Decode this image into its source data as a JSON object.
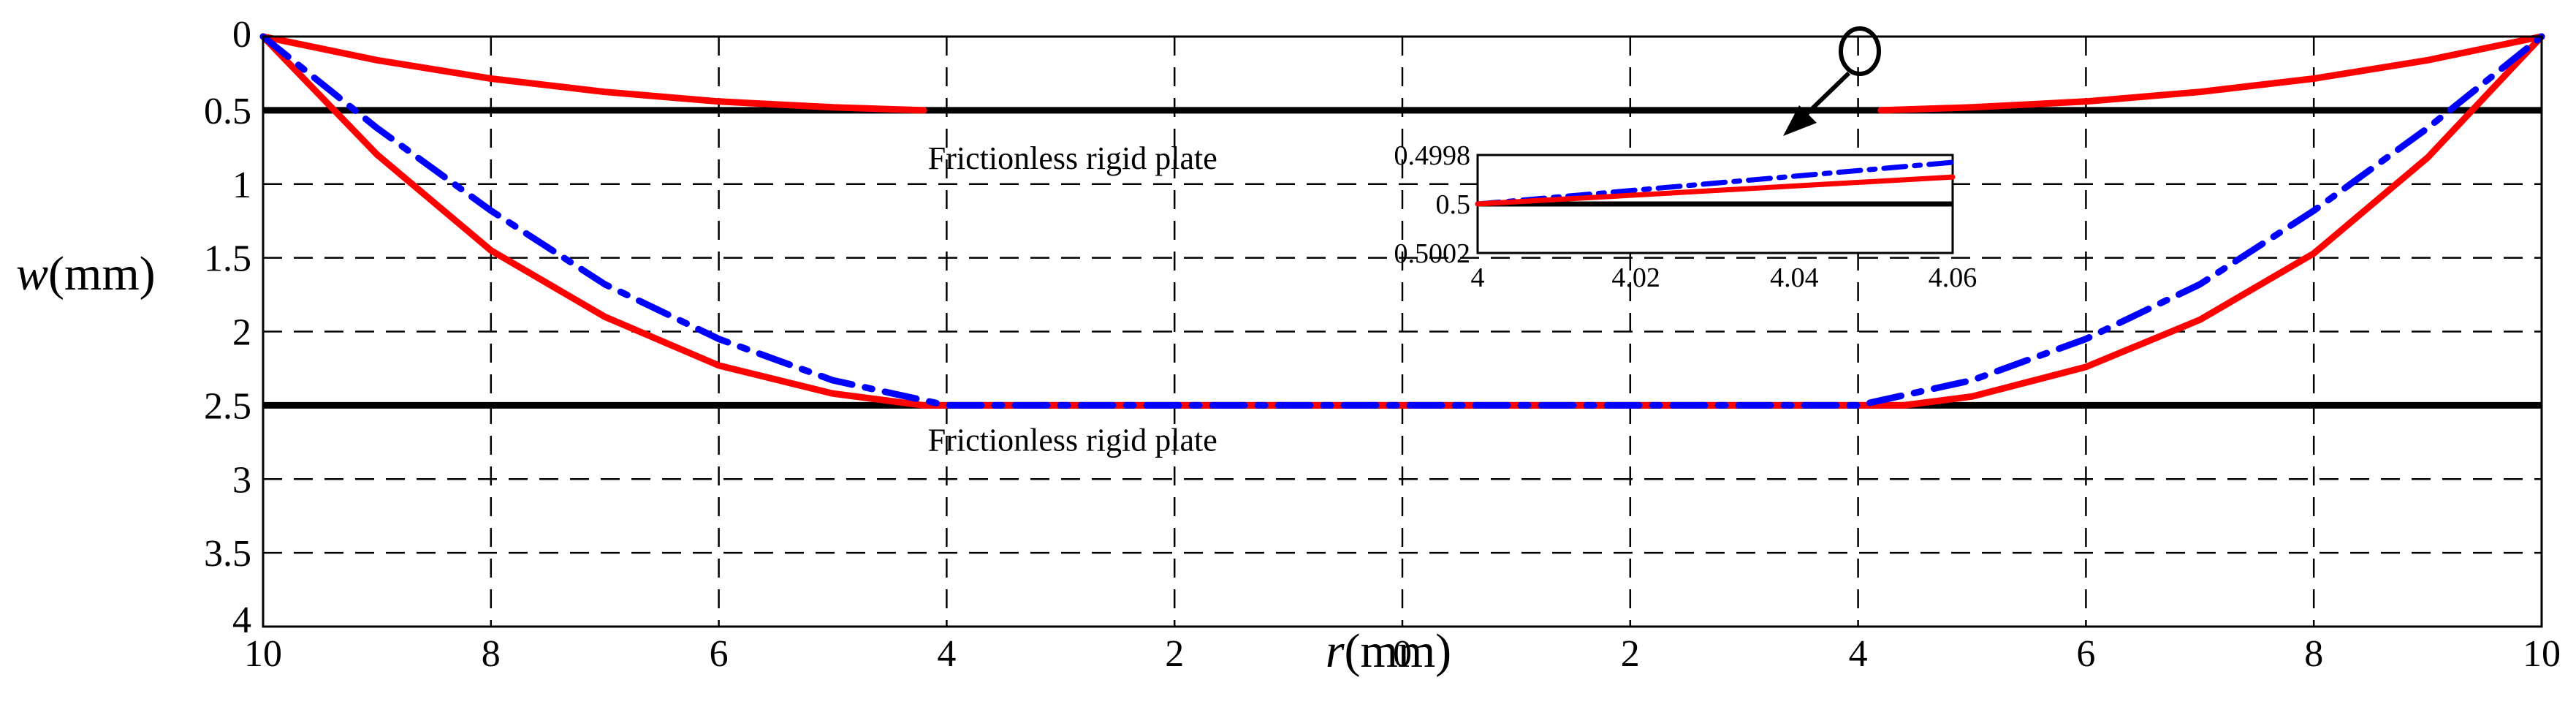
{
  "chart_data": {
    "type": "line",
    "title": "",
    "xlabel_italic": "r",
    "xlabel_unit": "(mm)",
    "ylabel_italic": "w",
    "ylabel_unit": "(mm)",
    "xlim": [
      -10,
      10
    ],
    "ylim": [
      0,
      4
    ],
    "y_inverted": true,
    "grid": true,
    "x_ticks": [
      -10,
      -8,
      -6,
      -4,
      -2,
      0,
      2,
      4,
      6,
      8,
      10
    ],
    "x_tick_labels": [
      "10",
      "8",
      "6",
      "4",
      "2",
      "0",
      "2",
      "4",
      "6",
      "8",
      "10"
    ],
    "y_ticks": [
      0,
      0.5,
      1,
      1.5,
      2,
      2.5,
      3,
      3.5,
      4
    ],
    "y_tick_labels": [
      "0",
      "0.5",
      "1",
      "1.5",
      "2",
      "2.5",
      "3",
      "3.5",
      "4"
    ],
    "plates": [
      {
        "name": "Frictionless rigid plate",
        "y": 0.5,
        "label": "Frictionless rigid plate",
        "label_x": -4.1
      },
      {
        "name": "Frictionless rigid plate",
        "y": 2.5,
        "label": "Frictionless rigid plate",
        "label_x": -4.1
      }
    ],
    "series": [
      {
        "name": "membrane-upper-left",
        "color": "#ff0000",
        "style": "solid",
        "x": [
          -10,
          -9,
          -8,
          -7,
          -6,
          -5,
          -4.2
        ],
        "y": [
          0,
          0.16,
          0.285,
          0.375,
          0.44,
          0.48,
          0.5
        ]
      },
      {
        "name": "membrane-upper-right",
        "color": "#ff0000",
        "style": "solid",
        "x": [
          4.2,
          5,
          6,
          7,
          8,
          9,
          10
        ],
        "y": [
          0.5,
          0.48,
          0.44,
          0.375,
          0.285,
          0.16,
          0
        ]
      },
      {
        "name": "membrane-lower-solid",
        "color": "#ff0000",
        "style": "solid",
        "x": [
          -10,
          -9,
          -8,
          -7,
          -6,
          -5,
          -4.2,
          4.4,
          5,
          6,
          7,
          8,
          9,
          10
        ],
        "y": [
          0,
          0.8,
          1.45,
          1.9,
          2.23,
          2.42,
          2.5,
          2.5,
          2.44,
          2.24,
          1.92,
          1.47,
          0.82,
          0
        ]
      },
      {
        "name": "membrane-lower-dashdot",
        "color": "#0000ff",
        "style": "dashdot",
        "x": [
          -10,
          -9,
          -8,
          -7,
          -6,
          -5,
          -4,
          4,
          5,
          6,
          7,
          8,
          9,
          10
        ],
        "y": [
          0,
          0.62,
          1.18,
          1.68,
          2.05,
          2.33,
          2.5,
          2.5,
          2.33,
          2.05,
          1.68,
          1.18,
          0.62,
          0
        ]
      }
    ],
    "annotation": {
      "type": "circle-arrow",
      "points_to": "inset"
    },
    "inset": {
      "xlim": [
        4,
        4.06
      ],
      "ylim": [
        0.4998,
        0.5002
      ],
      "y_inverted": true,
      "x_ticks": [
        4,
        4.02,
        4.04,
        4.06
      ],
      "x_tick_labels": [
        "4",
        "4.02",
        "4.04",
        "4.06"
      ],
      "y_ticks": [
        0.4998,
        0.5,
        0.5002
      ],
      "y_tick_labels": [
        "0.4998",
        "0.5",
        "0.5002"
      ],
      "plate_y": 0.5,
      "series": [
        {
          "name": "inset-dashdot",
          "color": "#0000ff",
          "style": "dashdot",
          "x": [
            4,
            4.06
          ],
          "y": [
            0.5,
            0.49983
          ]
        },
        {
          "name": "inset-solid",
          "color": "#ff0000",
          "style": "solid",
          "x": [
            4,
            4.06
          ],
          "y": [
            0.5,
            0.49989
          ]
        }
      ]
    }
  }
}
